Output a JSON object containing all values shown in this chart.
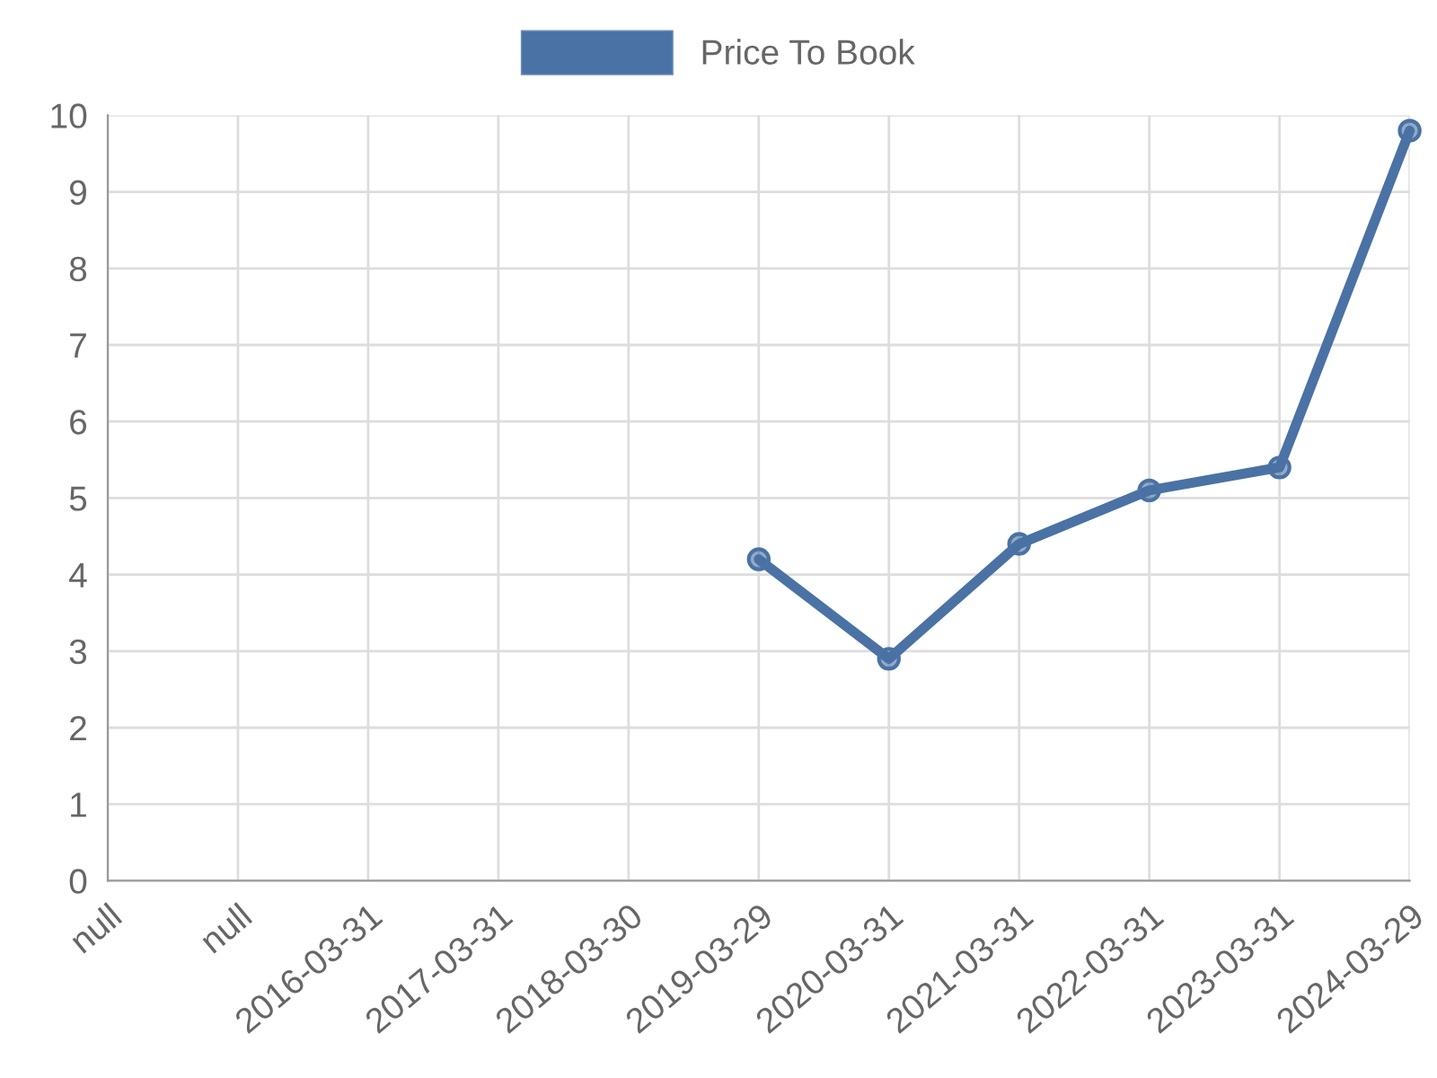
{
  "chart_data": {
    "type": "line",
    "categories": [
      "null",
      "null",
      "2016-03-31",
      "2017-03-31",
      "2018-03-30",
      "2019-03-29",
      "2020-03-31",
      "2021-03-31",
      "2022-03-31",
      "2023-03-31",
      "2024-03-29"
    ],
    "series": [
      {
        "name": "Price To Book",
        "color": "#4a72a4",
        "values": [
          null,
          null,
          null,
          null,
          null,
          4.2,
          2.9,
          4.4,
          5.1,
          5.4,
          9.8
        ]
      }
    ],
    "ylim": [
      0,
      10
    ],
    "yticks": [
      0,
      1,
      2,
      3,
      4,
      5,
      6,
      7,
      8,
      9,
      10
    ],
    "grid": true,
    "legend": "top",
    "marker": "circle",
    "line_style": "solid"
  }
}
